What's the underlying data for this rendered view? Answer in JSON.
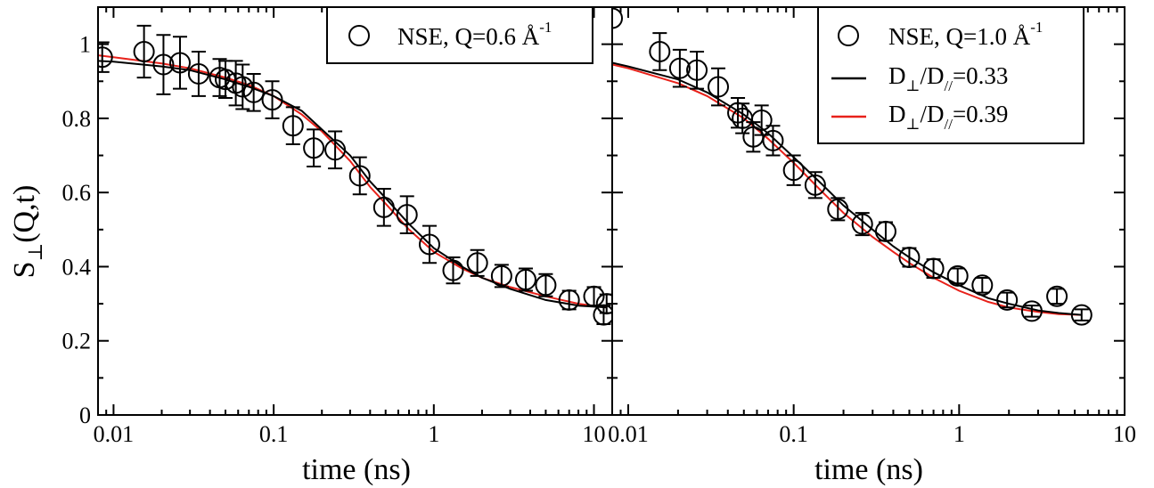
{
  "chart_data": [
    {
      "type": "scatter",
      "panel": "left",
      "xscale": "log",
      "xlim": [
        0.008,
        13
      ],
      "ylim": [
        0,
        1.1
      ],
      "xlabel": "time (ns)",
      "ylabel": "S⊥(Q,t)",
      "ylabel_main": "S",
      "ylabel_sub": "⊥",
      "ylabel_tail": "(Q,t)",
      "xticks": [
        0.01,
        0.1,
        1,
        10
      ],
      "xtick_labels": [
        "0.01",
        "0.1",
        "1",
        "10"
      ],
      "yticks": [
        0,
        0.2,
        0.4,
        0.6,
        0.8,
        1
      ],
      "ytick_labels": [
        "0",
        "0.2",
        "0.4",
        "0.6",
        "0.8",
        "1"
      ],
      "legend_position": "top-right",
      "legend": [
        {
          "kind": "marker",
          "text": "NSE, Q=0.6 Å",
          "sup": "-1"
        }
      ],
      "series": [
        {
          "name": "NSE, Q=0.6 Å-1",
          "kind": "points",
          "color": "#000000",
          "points": [
            {
              "x": 0.0085,
              "y": 0.965,
              "err": 0.04
            },
            {
              "x": 0.0155,
              "y": 0.98,
              "err": 0.07
            },
            {
              "x": 0.0205,
              "y": 0.945,
              "err": 0.08
            },
            {
              "x": 0.026,
              "y": 0.95,
              "err": 0.07
            },
            {
              "x": 0.034,
              "y": 0.92,
              "err": 0.06
            },
            {
              "x": 0.046,
              "y": 0.91,
              "err": 0.05
            },
            {
              "x": 0.05,
              "y": 0.905,
              "err": 0.05
            },
            {
              "x": 0.058,
              "y": 0.895,
              "err": 0.06
            },
            {
              "x": 0.064,
              "y": 0.885,
              "err": 0.06
            },
            {
              "x": 0.075,
              "y": 0.87,
              "err": 0.05
            },
            {
              "x": 0.098,
              "y": 0.85,
              "err": 0.05
            },
            {
              "x": 0.132,
              "y": 0.78,
              "err": 0.05
            },
            {
              "x": 0.178,
              "y": 0.72,
              "err": 0.05
            },
            {
              "x": 0.242,
              "y": 0.715,
              "err": 0.05
            },
            {
              "x": 0.345,
              "y": 0.645,
              "err": 0.05
            },
            {
              "x": 0.488,
              "y": 0.56,
              "err": 0.05
            },
            {
              "x": 0.68,
              "y": 0.54,
              "err": 0.05
            },
            {
              "x": 0.94,
              "y": 0.46,
              "err": 0.05
            },
            {
              "x": 1.32,
              "y": 0.39,
              "err": 0.035
            },
            {
              "x": 1.87,
              "y": 0.41,
              "err": 0.035
            },
            {
              "x": 2.65,
              "y": 0.375,
              "err": 0.03
            },
            {
              "x": 3.75,
              "y": 0.365,
              "err": 0.03
            },
            {
              "x": 5.0,
              "y": 0.35,
              "err": 0.03
            },
            {
              "x": 7.0,
              "y": 0.31,
              "err": 0.025
            },
            {
              "x": 10.0,
              "y": 0.32,
              "err": 0.025
            },
            {
              "x": 11.5,
              "y": 0.27,
              "err": 0.025
            },
            {
              "x": 12.0,
              "y": 0.3,
              "err": 0.025
            }
          ]
        },
        {
          "name": "D⊥/D//=0.33",
          "kind": "line",
          "color": "#000000",
          "points": [
            {
              "x": 0.008,
              "y": 0.955
            },
            {
              "x": 0.01,
              "y": 0.953
            },
            {
              "x": 0.02,
              "y": 0.94
            },
            {
              "x": 0.03,
              "y": 0.93
            },
            {
              "x": 0.05,
              "y": 0.905
            },
            {
              "x": 0.07,
              "y": 0.885
            },
            {
              "x": 0.1,
              "y": 0.86
            },
            {
              "x": 0.15,
              "y": 0.82
            },
            {
              "x": 0.2,
              "y": 0.77
            },
            {
              "x": 0.3,
              "y": 0.7
            },
            {
              "x": 0.4,
              "y": 0.63
            },
            {
              "x": 0.5,
              "y": 0.585
            },
            {
              "x": 0.7,
              "y": 0.515
            },
            {
              "x": 1.0,
              "y": 0.45
            },
            {
              "x": 1.5,
              "y": 0.4
            },
            {
              "x": 2.0,
              "y": 0.37
            },
            {
              "x": 3.0,
              "y": 0.34
            },
            {
              "x": 5.0,
              "y": 0.31
            },
            {
              "x": 8.0,
              "y": 0.295
            },
            {
              "x": 12.0,
              "y": 0.29
            }
          ]
        },
        {
          "name": "D⊥/D//=0.39",
          "kind": "line",
          "color": "#e8211a",
          "points": [
            {
              "x": 0.008,
              "y": 0.97
            },
            {
              "x": 0.01,
              "y": 0.965
            },
            {
              "x": 0.02,
              "y": 0.948
            },
            {
              "x": 0.03,
              "y": 0.935
            },
            {
              "x": 0.05,
              "y": 0.91
            },
            {
              "x": 0.07,
              "y": 0.89
            },
            {
              "x": 0.1,
              "y": 0.86
            },
            {
              "x": 0.15,
              "y": 0.81
            },
            {
              "x": 0.2,
              "y": 0.765
            },
            {
              "x": 0.3,
              "y": 0.685
            },
            {
              "x": 0.4,
              "y": 0.615
            },
            {
              "x": 0.5,
              "y": 0.57
            },
            {
              "x": 0.7,
              "y": 0.5
            },
            {
              "x": 1.0,
              "y": 0.44
            },
            {
              "x": 1.5,
              "y": 0.395
            },
            {
              "x": 2.0,
              "y": 0.37
            },
            {
              "x": 3.0,
              "y": 0.345
            },
            {
              "x": 5.0,
              "y": 0.32
            },
            {
              "x": 8.0,
              "y": 0.3
            },
            {
              "x": 12.0,
              "y": 0.29
            }
          ]
        }
      ]
    },
    {
      "type": "scatter",
      "panel": "right",
      "xscale": "log",
      "xlim": [
        0.008,
        10
      ],
      "ylim": [
        0,
        1.1
      ],
      "xlabel": "time (ns)",
      "xticks": [
        0.01,
        0.1,
        1,
        10
      ],
      "xtick_labels": [
        "0.01",
        "0.1",
        "1",
        "10"
      ],
      "yticks": [
        0,
        0.2,
        0.4,
        0.6,
        0.8,
        1
      ],
      "legend_position": "top-right",
      "legend": [
        {
          "kind": "marker",
          "text": "NSE, Q=1.0 Å",
          "sup": "-1"
        },
        {
          "kind": "line",
          "color": "#000000",
          "text_main": "D",
          "sub1": "⊥",
          "text_mid": "/D",
          "sub2": "//",
          "text_tail": "=0.33"
        },
        {
          "kind": "line",
          "color": "#e8211a",
          "text_main": "D",
          "sub1": "⊥",
          "text_mid": "/D",
          "sub2": "//",
          "text_tail": "=0.39"
        }
      ],
      "series": [
        {
          "name": "NSE, Q=1.0 Å-1",
          "kind": "points",
          "color": "#000000",
          "points": [
            {
              "x": 0.008,
              "y": 1.07,
              "err": 0.0
            },
            {
              "x": 0.0155,
              "y": 0.98,
              "err": 0.05
            },
            {
              "x": 0.0205,
              "y": 0.935,
              "err": 0.05
            },
            {
              "x": 0.026,
              "y": 0.93,
              "err": 0.05
            },
            {
              "x": 0.035,
              "y": 0.885,
              "err": 0.05
            },
            {
              "x": 0.046,
              "y": 0.815,
              "err": 0.04
            },
            {
              "x": 0.049,
              "y": 0.8,
              "err": 0.04
            },
            {
              "x": 0.057,
              "y": 0.75,
              "err": 0.04
            },
            {
              "x": 0.064,
              "y": 0.795,
              "err": 0.04
            },
            {
              "x": 0.075,
              "y": 0.74,
              "err": 0.04
            },
            {
              "x": 0.1,
              "y": 0.66,
              "err": 0.04
            },
            {
              "x": 0.135,
              "y": 0.62,
              "err": 0.035
            },
            {
              "x": 0.185,
              "y": 0.555,
              "err": 0.03
            },
            {
              "x": 0.26,
              "y": 0.515,
              "err": 0.03
            },
            {
              "x": 0.36,
              "y": 0.495,
              "err": 0.025
            },
            {
              "x": 0.5,
              "y": 0.425,
              "err": 0.025
            },
            {
              "x": 0.7,
              "y": 0.395,
              "err": 0.025
            },
            {
              "x": 0.98,
              "y": 0.375,
              "err": 0.02
            },
            {
              "x": 1.38,
              "y": 0.35,
              "err": 0.02
            },
            {
              "x": 1.95,
              "y": 0.31,
              "err": 0.02
            },
            {
              "x": 2.75,
              "y": 0.28,
              "err": 0.015
            },
            {
              "x": 3.9,
              "y": 0.32,
              "err": 0.02
            },
            {
              "x": 5.5,
              "y": 0.27,
              "err": 0.015
            }
          ]
        },
        {
          "name": "D⊥/D//=0.33",
          "kind": "line",
          "color": "#000000",
          "points": [
            {
              "x": 0.008,
              "y": 0.95
            },
            {
              "x": 0.01,
              "y": 0.94
            },
            {
              "x": 0.02,
              "y": 0.905
            },
            {
              "x": 0.03,
              "y": 0.87
            },
            {
              "x": 0.05,
              "y": 0.81
            },
            {
              "x": 0.07,
              "y": 0.76
            },
            {
              "x": 0.1,
              "y": 0.695
            },
            {
              "x": 0.15,
              "y": 0.62
            },
            {
              "x": 0.2,
              "y": 0.565
            },
            {
              "x": 0.3,
              "y": 0.5
            },
            {
              "x": 0.4,
              "y": 0.455
            },
            {
              "x": 0.5,
              "y": 0.425
            },
            {
              "x": 0.7,
              "y": 0.385
            },
            {
              "x": 1.0,
              "y": 0.35
            },
            {
              "x": 1.5,
              "y": 0.315
            },
            {
              "x": 2.0,
              "y": 0.3
            },
            {
              "x": 3.0,
              "y": 0.282
            },
            {
              "x": 4.0,
              "y": 0.275
            },
            {
              "x": 5.5,
              "y": 0.27
            }
          ]
        },
        {
          "name": "D⊥/D//=0.39",
          "kind": "line",
          "color": "#e8211a",
          "points": [
            {
              "x": 0.008,
              "y": 0.945
            },
            {
              "x": 0.01,
              "y": 0.935
            },
            {
              "x": 0.02,
              "y": 0.895
            },
            {
              "x": 0.03,
              "y": 0.86
            },
            {
              "x": 0.05,
              "y": 0.8
            },
            {
              "x": 0.07,
              "y": 0.745
            },
            {
              "x": 0.1,
              "y": 0.68
            },
            {
              "x": 0.15,
              "y": 0.6
            },
            {
              "x": 0.2,
              "y": 0.545
            },
            {
              "x": 0.3,
              "y": 0.48
            },
            {
              "x": 0.4,
              "y": 0.44
            },
            {
              "x": 0.5,
              "y": 0.41
            },
            {
              "x": 0.7,
              "y": 0.37
            },
            {
              "x": 1.0,
              "y": 0.335
            },
            {
              "x": 1.5,
              "y": 0.305
            },
            {
              "x": 2.0,
              "y": 0.29
            },
            {
              "x": 3.0,
              "y": 0.278
            },
            {
              "x": 4.0,
              "y": 0.272
            },
            {
              "x": 5.5,
              "y": 0.27
            }
          ]
        }
      ]
    }
  ]
}
